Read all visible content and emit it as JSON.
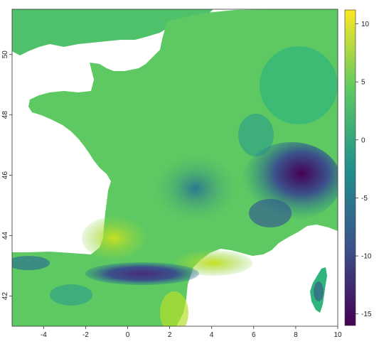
{
  "map": {
    "x_ticks": [
      "-4",
      "-2",
      "0",
      "2",
      "4",
      "6",
      "8",
      "10"
    ],
    "y_ticks": [
      "42",
      "44",
      "46",
      "48",
      "50"
    ],
    "x_range": [
      -5.5,
      10
    ],
    "y_range": [
      41,
      51.5
    ]
  },
  "legend": {
    "ticks": [
      "10",
      "5",
      "0",
      "-5",
      "-10",
      "-15"
    ],
    "range": [
      -16,
      11.2
    ],
    "colormap": "viridis",
    "colors": [
      "#440154",
      "#3b528b",
      "#21918c",
      "#5ec962",
      "#fde725"
    ]
  },
  "colors": {
    "sea": "#ffffff",
    "lowland_warm": "#9fd14a",
    "plain": "#5ec962",
    "upland": "#2fb47c",
    "mountain": "#21918c",
    "high_mountain": "#3b528b",
    "peak": "#440154"
  }
}
